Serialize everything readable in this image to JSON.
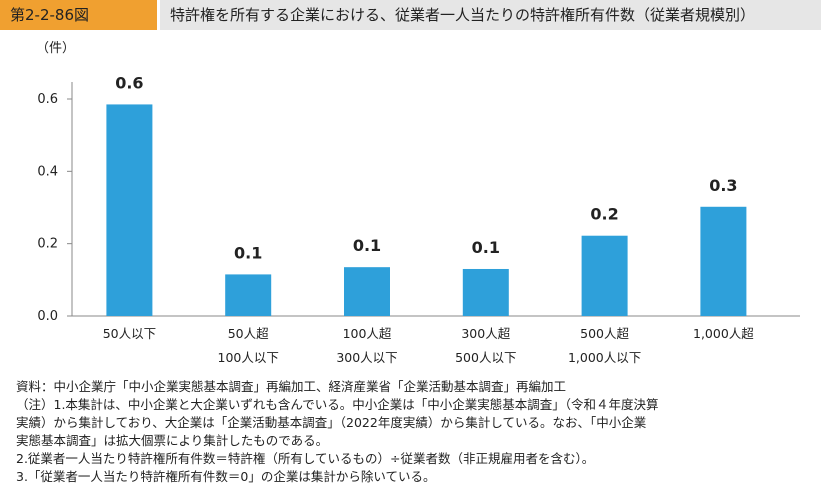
{
  "header": {
    "figure_number": "第2-2-86図",
    "title": "特許権を所有する企業における、従業者一人当たりの特許権所有件数（従業者規模別）"
  },
  "chart_data": {
    "type": "bar",
    "unit_label": "（件）",
    "categories": [
      [
        "50人以下"
      ],
      [
        "50人超",
        "100人以下"
      ],
      [
        "100人超",
        "300人以下"
      ],
      [
        "300人超",
        "500人以下"
      ],
      [
        "500人超",
        "1,000人以下"
      ],
      [
        "1,000人超"
      ]
    ],
    "values": [
      0.585,
      0.115,
      0.135,
      0.13,
      0.222,
      0.302
    ],
    "data_labels": [
      "0.6",
      "0.1",
      "0.1",
      "0.1",
      "0.2",
      "0.3"
    ],
    "yticks": [
      0.0,
      0.2,
      0.4,
      0.6
    ],
    "ytick_labels": [
      "0.0",
      "0.2",
      "0.4",
      "0.6"
    ],
    "ylim": [
      0,
      0.7
    ],
    "bar_color": "#2ea0da",
    "grid": false,
    "legend": "none"
  },
  "notes": {
    "source": "資料：中小企業庁「中小企業実態基本調査」再編加工、経済産業省「企業活動基本調査」再編加工",
    "note1_line1": "（注）1.本集計は、中小企業と大企業いずれも含んでいる。中小企業は「中小企業実態基本調査」（令和４年度決算",
    "note1_line2": "実績）から集計しており、大企業は「企業活動基本調査」（2022年度実績）から集計している。なお、「中小企業",
    "note1_line3": "実態基本調査」は拡大個票により集計したものである。",
    "note2": "2.従業者一人当たり特許権所有件数＝特許権（所有しているもの）÷従業者数（非正規雇用者を含む）。",
    "note3": "3.「従業者一人当たり特許権所有件数＝0」の企業は集計から除いている。"
  }
}
